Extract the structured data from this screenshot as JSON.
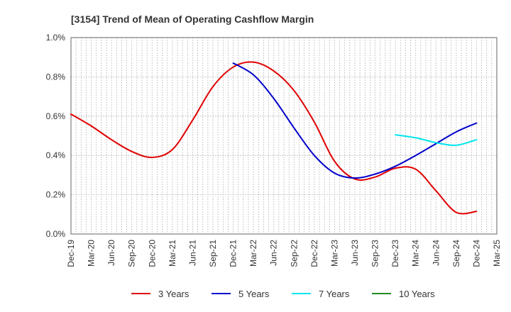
{
  "chart_data": {
    "type": "line",
    "title": "[3154]  Trend of Mean of Operating Cashflow Margin",
    "xlabel": "",
    "ylabel": "",
    "x_ticks": [
      "Dec-19",
      "Mar-20",
      "Jun-20",
      "Sep-20",
      "Dec-20",
      "Mar-21",
      "Jun-21",
      "Sep-21",
      "Dec-21",
      "Mar-22",
      "Jun-22",
      "Sep-22",
      "Dec-22",
      "Mar-23",
      "Jun-23",
      "Sep-23",
      "Dec-23",
      "Mar-24",
      "Jun-24",
      "Sep-24",
      "Dec-24",
      "Mar-25"
    ],
    "y_ticks": [
      "0.0%",
      "0.2%",
      "0.4%",
      "0.6%",
      "0.8%",
      "1.0%"
    ],
    "ylim": [
      0,
      1.0
    ],
    "y_unit": "%",
    "grid": true,
    "legend_position": "bottom",
    "series": [
      {
        "name": "3 Years",
        "color": "#e00000",
        "points": [
          [
            "Dec-19",
            0.61
          ],
          [
            "Mar-20",
            0.55
          ],
          [
            "Jun-20",
            0.48
          ],
          [
            "Sep-20",
            0.42
          ],
          [
            "Dec-20",
            0.39
          ],
          [
            "Mar-21",
            0.43
          ],
          [
            "Jun-21",
            0.58
          ],
          [
            "Sep-21",
            0.75
          ],
          [
            "Dec-21",
            0.85
          ],
          [
            "Mar-22",
            0.875
          ],
          [
            "Jun-22",
            0.83
          ],
          [
            "Sep-22",
            0.73
          ],
          [
            "Dec-22",
            0.57
          ],
          [
            "Mar-23",
            0.37
          ],
          [
            "Jun-23",
            0.28
          ],
          [
            "Sep-23",
            0.29
          ],
          [
            "Dec-23",
            0.335
          ],
          [
            "Mar-24",
            0.33
          ],
          [
            "Jun-24",
            0.22
          ],
          [
            "Sep-24",
            0.11
          ],
          [
            "Dec-24",
            0.115
          ]
        ]
      },
      {
        "name": "5 Years",
        "color": "#0000cc",
        "points": [
          [
            "Dec-21",
            0.87
          ],
          [
            "Mar-22",
            0.81
          ],
          [
            "Jun-22",
            0.69
          ],
          [
            "Sep-22",
            0.54
          ],
          [
            "Dec-22",
            0.4
          ],
          [
            "Mar-23",
            0.31
          ],
          [
            "Jun-23",
            0.285
          ],
          [
            "Sep-23",
            0.305
          ],
          [
            "Dec-23",
            0.345
          ],
          [
            "Mar-24",
            0.4
          ],
          [
            "Jun-24",
            0.46
          ],
          [
            "Sep-24",
            0.52
          ],
          [
            "Dec-24",
            0.565
          ]
        ]
      },
      {
        "name": "7 Years",
        "color": "#00e5ee",
        "points": [
          [
            "Dec-23",
            0.505
          ],
          [
            "Mar-24",
            0.49
          ],
          [
            "Jun-24",
            0.465
          ],
          [
            "Sep-24",
            0.452
          ],
          [
            "Dec-24",
            0.48
          ]
        ]
      },
      {
        "name": "10 Years",
        "color": "#228b22",
        "points": []
      }
    ]
  }
}
